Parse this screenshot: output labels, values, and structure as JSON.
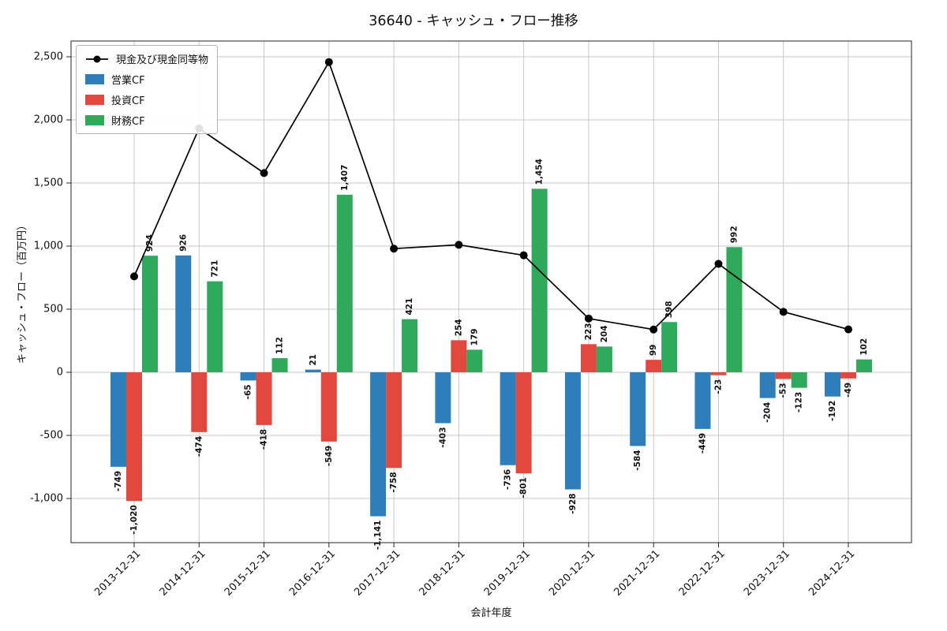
{
  "chart_data": {
    "type": "bar",
    "title": "36640 - キャッシュ・フロー推移",
    "xlabel": "会計年度",
    "ylabel": "キャッシュ・フロー（百万円）",
    "categories": [
      "2013-12-31",
      "2014-12-31",
      "2015-12-31",
      "2016-12-31",
      "2017-12-31",
      "2018-12-31",
      "2019-12-31",
      "2020-12-31",
      "2021-12-31",
      "2022-12-31",
      "2023-12-31",
      "2024-12-31"
    ],
    "series": [
      {
        "name": "営業CF",
        "slug": "operating-cf",
        "type": "bar",
        "color": "#2e7ebc",
        "values": [
          -749,
          926,
          -65,
          21,
          -1141,
          -403,
          -736,
          -928,
          -584,
          -449,
          -204,
          -192
        ]
      },
      {
        "name": "投資CF",
        "slug": "investing-cf",
        "type": "bar",
        "color": "#e2483d",
        "values": [
          -1020,
          -474,
          -418,
          -549,
          -758,
          254,
          -801,
          223,
          99,
          -23,
          -53,
          -49
        ]
      },
      {
        "name": "財務CF",
        "slug": "financing-cf",
        "type": "bar",
        "color": "#2fa95c",
        "values": [
          924,
          721,
          112,
          1407,
          421,
          179,
          1454,
          204,
          398,
          992,
          -123,
          102
        ]
      },
      {
        "name": "現金及び現金同等物",
        "slug": "cash-and-equivalents",
        "type": "line",
        "color": "#000000",
        "values": [
          760,
          1933,
          1579,
          2458,
          980,
          1010,
          927,
          426,
          339,
          859,
          479,
          340
        ]
      }
    ],
    "yticks": [
      2500,
      2000,
      1500,
      1000,
      500,
      0,
      -500,
      -1000
    ],
    "ytick_labels": [
      "2,500",
      "2,000",
      "1,500",
      "1,000",
      "500",
      "0",
      "-500",
      "-1,000"
    ],
    "ylim": [
      -1350,
      2625
    ],
    "grid": true,
    "legend_position": "upper left",
    "bar_label_rotation": 90,
    "colors": {
      "grid": "#c8c8c8",
      "frame": "#262626",
      "text": "#111111",
      "background": "#ffffff"
    }
  }
}
